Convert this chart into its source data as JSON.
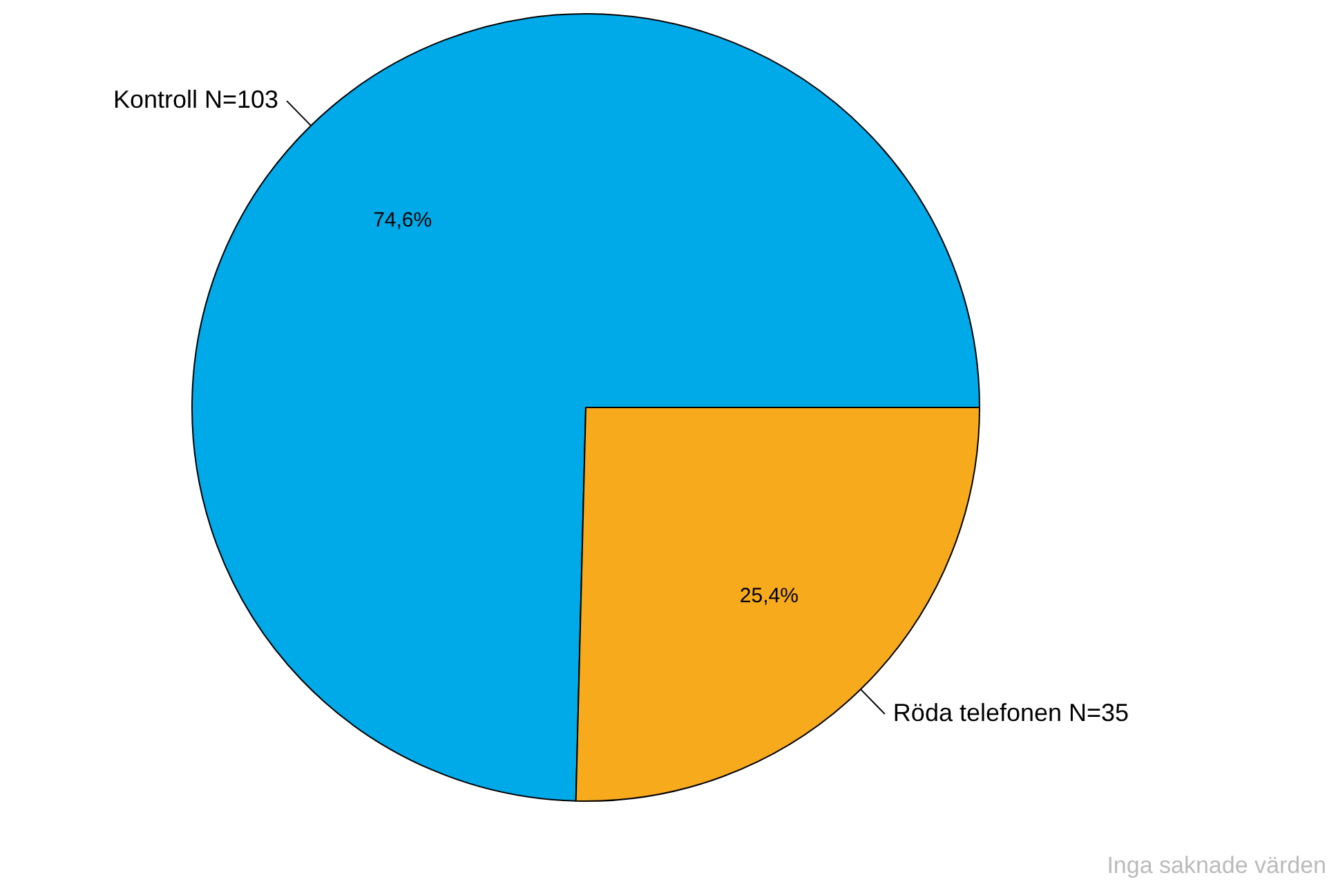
{
  "chart_data": {
    "type": "pie",
    "categories": [
      "Kontroll N=103",
      "Röda telefonen N=35"
    ],
    "values": [
      74.6,
      25.4
    ],
    "colors": [
      "#00a9e8",
      "#f7aa1c"
    ],
    "value_labels": [
      "74,6%",
      "25,4%"
    ],
    "annotations": [
      "Inga saknade värden"
    ]
  }
}
